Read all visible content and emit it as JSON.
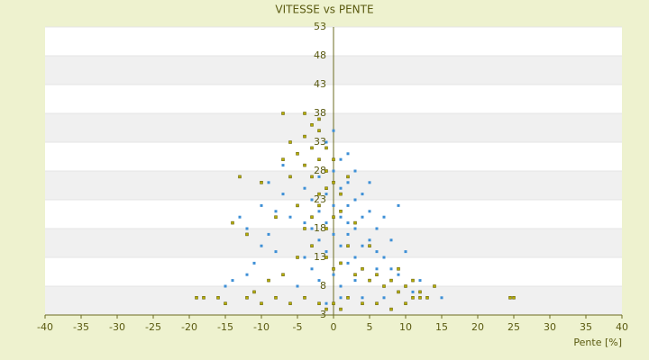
{
  "chart_data": {
    "type": "scatter",
    "title": "VITESSE vs PENTE",
    "x_label": "Pente [%]",
    "xlim": [
      -40,
      40
    ],
    "xticks": [
      -40,
      -35,
      -30,
      -25,
      -20,
      -15,
      -10,
      -5,
      0,
      5,
      10,
      15,
      20,
      25,
      30,
      35,
      40
    ],
    "ylim": [
      3,
      53
    ],
    "yticks": [
      3,
      8,
      13,
      18,
      23,
      28,
      33,
      38,
      43,
      48,
      53
    ],
    "grid": true,
    "series": [
      {
        "color": "#3d8fd6",
        "x": [
          0,
          1,
          2,
          -1,
          -2,
          3,
          1,
          0,
          -3,
          4,
          2,
          -1,
          5,
          -4,
          1,
          3,
          -2,
          0,
          6,
          -5,
          2,
          -3,
          7,
          1,
          -6,
          4,
          -1,
          8,
          -7,
          0,
          3,
          -8,
          9,
          2,
          -2,
          5,
          -4,
          6,
          -9,
          10,
          -10,
          11,
          12,
          15,
          -11,
          -12,
          -14,
          0,
          1,
          -1,
          4,
          7,
          -5,
          -3,
          2,
          -1,
          0,
          3,
          5,
          9,
          -6,
          -7,
          -9,
          -10,
          -12,
          -13,
          3,
          6,
          8,
          -2,
          1,
          4,
          -4,
          -8,
          10,
          12,
          -15,
          7,
          0,
          2
        ],
        "values": [
          22,
          20,
          19,
          24,
          21,
          18,
          25,
          17,
          23,
          20,
          22,
          19,
          16,
          25,
          15,
          23,
          27,
          28,
          14,
          22,
          12,
          18,
          13,
          30,
          20,
          15,
          14,
          11,
          24,
          10,
          9,
          21,
          10,
          26,
          16,
          21,
          19,
          18,
          17,
          8,
          15,
          7,
          7,
          6,
          12,
          10,
          9,
          5,
          6,
          5,
          6,
          6,
          8,
          11,
          31,
          33,
          35,
          28,
          26,
          22,
          27,
          29,
          26,
          22,
          18,
          20,
          13,
          11,
          16,
          9,
          8,
          24,
          13,
          14,
          14,
          9,
          8,
          20,
          20,
          17
        ]
      },
      {
        "color": "#b5ad00",
        "x": [
          -3,
          -2,
          -4,
          -3,
          -5,
          -2,
          -1,
          -4,
          -6,
          -3,
          -1,
          0,
          -2,
          1,
          -5,
          -8,
          -10,
          -13,
          -14,
          -12,
          -7,
          -6,
          -2,
          -4,
          -7,
          2,
          4,
          6,
          8,
          10,
          12,
          13,
          11,
          7,
          9,
          5,
          3,
          0,
          -1,
          1,
          -19,
          -18,
          -16,
          -15,
          -12,
          -10,
          -8,
          -6,
          -4,
          -2,
          -1,
          0,
          1,
          2,
          4,
          6,
          8,
          10,
          12,
          25,
          24.5,
          -11,
          -9,
          -7,
          -5,
          -3,
          -1,
          0,
          1,
          3,
          -2,
          0,
          -1,
          2,
          -3,
          -4,
          5,
          9,
          14,
          11
        ],
        "values": [
          36,
          37,
          34,
          32,
          31,
          30,
          28,
          29,
          27,
          27,
          25,
          26,
          24,
          24,
          22,
          20,
          26,
          27,
          19,
          17,
          30,
          33,
          35,
          38,
          38,
          15,
          11,
          10,
          9,
          8,
          7,
          6,
          9,
          8,
          7,
          9,
          10,
          11,
          13,
          12,
          6,
          6,
          6,
          5,
          6,
          5,
          6,
          5,
          6,
          5,
          4,
          5,
          4,
          6,
          5,
          5,
          4,
          5,
          6,
          6,
          6,
          7,
          9,
          10,
          13,
          15,
          18,
          20,
          21,
          19,
          22,
          30,
          32,
          27,
          20,
          18,
          15,
          11,
          8,
          6
        ]
      }
    ]
  }
}
